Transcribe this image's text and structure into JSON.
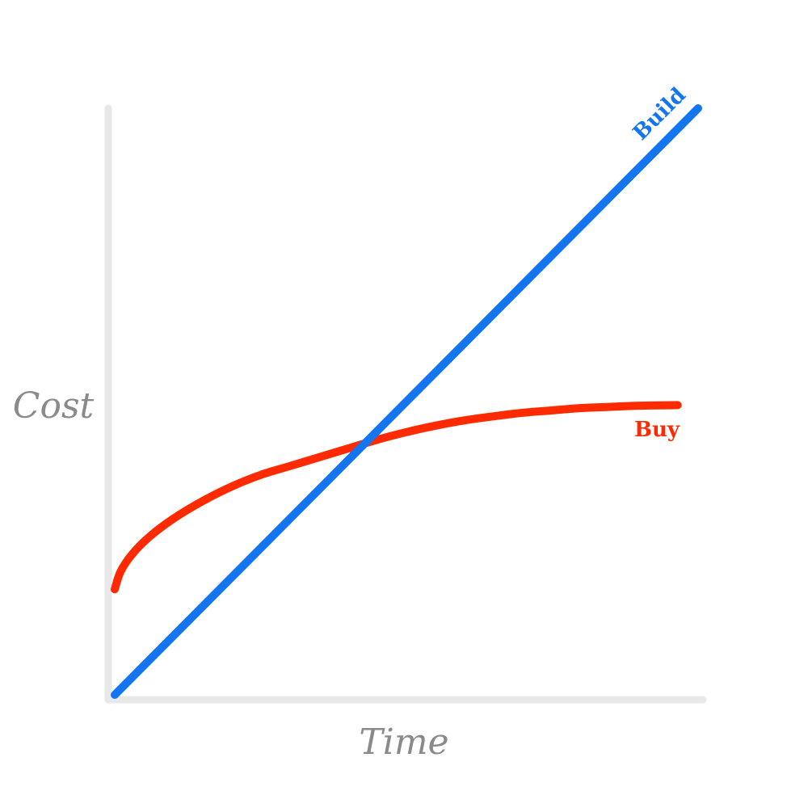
{
  "chart_data": {
    "type": "line",
    "title": "",
    "xlabel": "Time",
    "ylabel": "Cost",
    "xlim": [
      0,
      100
    ],
    "ylim": [
      0,
      100
    ],
    "grid": false,
    "ticks": false,
    "axis_color": "#e8e8e8",
    "series": [
      {
        "name": "Build",
        "color": "#1475f0",
        "x": [
          0,
          100
        ],
        "y": [
          0,
          100
        ]
      },
      {
        "name": "Buy",
        "color": "#ff2a00",
        "x": [
          0,
          1,
          3,
          6,
          10,
          15,
          20,
          25,
          30,
          36,
          40,
          45,
          50,
          55,
          60,
          65,
          70,
          75,
          80,
          85,
          90,
          96.5
        ],
        "y": [
          18,
          21,
          24,
          27,
          30,
          33,
          35.5,
          37.5,
          39,
          40.8,
          42,
          43.5,
          44.8,
          45.9,
          46.8,
          47.5,
          48.1,
          48.5,
          48.9,
          49.1,
          49.3,
          49.4
        ]
      }
    ]
  }
}
